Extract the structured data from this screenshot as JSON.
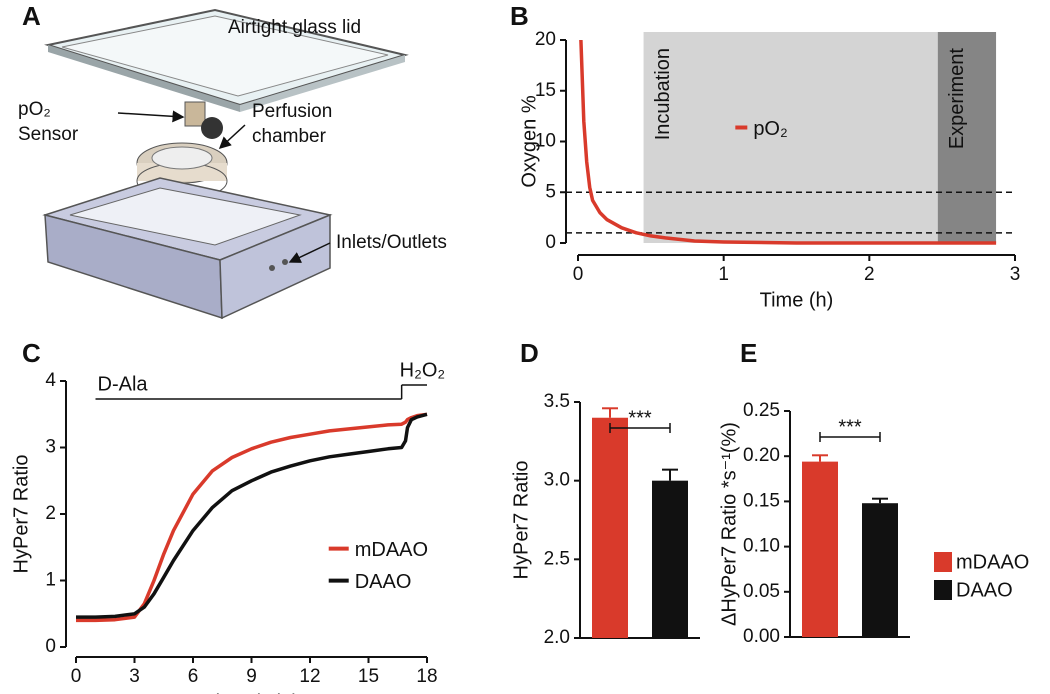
{
  "panel_a": {
    "panel": "A",
    "labels": [
      "Airtight glass lid",
      [
        "pO₂",
        "Sensor"
      ],
      [
        "Perfusion",
        "chamber"
      ],
      "Inlets/Outlets"
    ]
  },
  "chart_data": [
    {
      "type": "line",
      "panel": "B",
      "x_label": "Time (h)",
      "y_label": "Oxygen %",
      "xlim": [
        0,
        3
      ],
      "ylim": [
        0,
        20
      ],
      "xticks": [
        0,
        1,
        2,
        3
      ],
      "yticks": [
        0,
        5,
        10,
        15,
        20
      ],
      "x": [
        0.02,
        0.04,
        0.06,
        0.08,
        0.1,
        0.15,
        0.2,
        0.3,
        0.4,
        0.5,
        0.6,
        0.8,
        1.0,
        1.5,
        2.0,
        2.5,
        2.87
      ],
      "series": [
        {
          "name": "pO₂",
          "color": "#d93a2b",
          "values": [
            20,
            12,
            8,
            5.5,
            4.2,
            3,
            2.3,
            1.5,
            1.0,
            0.7,
            0.5,
            0.2,
            0.1,
            0,
            0,
            0,
            0
          ]
        }
      ],
      "regions": [
        {
          "label": "Incubation",
          "start": 0.45,
          "end": 2.47,
          "color": "#d4d4d4"
        },
        {
          "label": "Experiment",
          "start": 2.47,
          "end": 2.87,
          "color": "#858585"
        }
      ],
      "hlines": [
        5,
        1
      ],
      "legend": "center"
    },
    {
      "type": "line",
      "panel": "C",
      "x_label": "Time (min)",
      "y_label": "HyPer7 Ratio",
      "xlim": [
        0,
        18
      ],
      "ylim": [
        0,
        4
      ],
      "xticks": [
        0,
        3,
        6,
        9,
        12,
        15,
        18
      ],
      "yticks": [
        0,
        1,
        2,
        3,
        4
      ],
      "x": [
        0,
        1,
        2,
        3,
        3.5,
        4,
        4.5,
        5,
        6,
        7,
        8,
        9,
        10,
        11,
        12,
        13,
        14,
        15,
        16,
        16.7,
        16.9,
        17,
        17.2,
        17.5,
        18
      ],
      "series": [
        {
          "name": "mDAAO",
          "color": "#d93a2b",
          "values": [
            0.4,
            0.4,
            0.41,
            0.45,
            0.65,
            1.0,
            1.4,
            1.75,
            2.3,
            2.65,
            2.85,
            2.98,
            3.08,
            3.15,
            3.2,
            3.25,
            3.28,
            3.31,
            3.34,
            3.35,
            3.38,
            3.42,
            3.45,
            3.48,
            3.5
          ]
        },
        {
          "name": "DAAO",
          "color": "#111111",
          "values": [
            0.45,
            0.45,
            0.46,
            0.5,
            0.6,
            0.8,
            1.05,
            1.3,
            1.75,
            2.1,
            2.35,
            2.5,
            2.63,
            2.72,
            2.8,
            2.86,
            2.9,
            2.94,
            2.98,
            3.0,
            3.1,
            3.3,
            3.42,
            3.46,
            3.5
          ]
        }
      ],
      "stimuli": [
        {
          "label": "D-Ala",
          "start": 1,
          "end": 16.7
        },
        {
          "label": "H₂O₂",
          "start": 16.7,
          "end": 18
        }
      ],
      "legend": "lower right"
    },
    {
      "type": "bar",
      "panel": "D",
      "y_label": "HyPer7 Ratio",
      "ylim": [
        2.0,
        3.5
      ],
      "yticks": [
        {
          "value": 2.0,
          "label": "2.0"
        },
        {
          "value": 2.5,
          "label": "2.5"
        },
        {
          "value": 3.0,
          "label": "3.0"
        },
        {
          "value": 3.5,
          "label": "3.5"
        }
      ],
      "categories": [
        null,
        null
      ],
      "values": [
        3.4,
        3.0
      ],
      "errors": [
        0.06,
        0.07
      ],
      "colors": [
        "#d93a2b",
        "#111111"
      ],
      "significance": "***"
    },
    {
      "type": "bar",
      "panel": "E",
      "y_label": "ΔHyPer7 Ratio *s⁻¹(%)",
      "ylim": [
        0,
        0.25
      ],
      "yticks": [
        {
          "value": 0,
          "label": "0.00"
        },
        {
          "value": 0.05,
          "label": "0.05"
        },
        {
          "value": 0.1,
          "label": "0.10"
        },
        {
          "value": 0.15,
          "label": "0.15"
        },
        {
          "value": 0.2,
          "label": "0.20"
        },
        {
          "value": 0.25,
          "label": "0.25"
        }
      ],
      "categories": [
        null,
        null
      ],
      "values": [
        0.194,
        0.148
      ],
      "errors": [
        0.007,
        0.005
      ],
      "colors": [
        "#d93a2b",
        "#111111"
      ],
      "significance": "***",
      "legend_labels": [
        "mDAAO",
        "DAAO"
      ]
    }
  ]
}
